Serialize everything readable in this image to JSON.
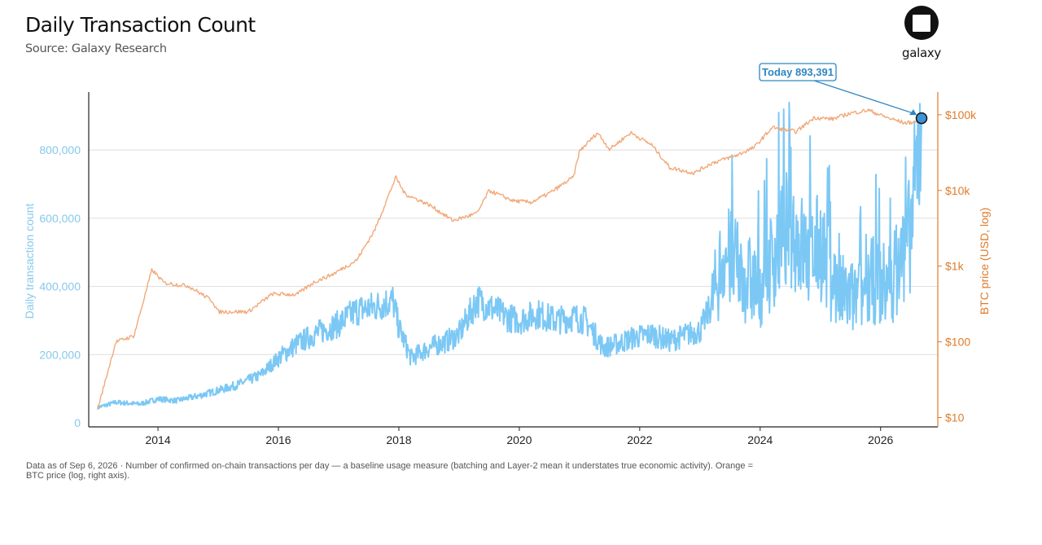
{
  "header": {
    "title": "Daily Transaction Count",
    "subtitle": "Source: Galaxy Research"
  },
  "logo": {
    "text": "galaxy",
    "icon": "galaxy-logo-icon"
  },
  "footnote": "Data as of Sep 6, 2026 · Number of confirmed on-chain transactions per day — a baseline usage measure (batching and Layer-2 mean it understates true economic activity). Orange = BTC price (log, right axis).",
  "chart_data": {
    "type": "line",
    "xlabel": "",
    "ylabel": "Daily transaction count",
    "y2label": "BTC price (USD, log)",
    "xlim": [
      2012.85,
      2026.95
    ],
    "ylim": [
      0,
      970000
    ],
    "y2lim_log10": [
      0.93,
      5.3
    ],
    "x_ticks": [
      2014,
      2016,
      2018,
      2020,
      2022,
      2024,
      2026
    ],
    "y_ticks": [
      0,
      200000,
      400000,
      600000,
      800000
    ],
    "y_tick_labels": [
      "0",
      "200,000",
      "400,000",
      "600,000",
      "800,000"
    ],
    "y2_ticks": [
      10,
      100,
      1000,
      10000,
      100000
    ],
    "y2_tick_labels": [
      "$10",
      "$100",
      "$1k",
      "$10k",
      "$100k"
    ],
    "grid": "horizontal",
    "colors": {
      "transactions": "#7cc8f5",
      "price": "#f2a97a",
      "left_axis": "#86c9ec",
      "right_axis": "#e07b2a",
      "annotation": "#2e86c1"
    },
    "series": [
      {
        "name": "Daily transaction count",
        "axis": "left",
        "x": [
          2013.0,
          2013.3,
          2013.7,
          2014.0,
          2014.3,
          2014.7,
          2015.0,
          2015.3,
          2015.7,
          2016.0,
          2016.3,
          2016.6,
          2017.0,
          2017.3,
          2017.6,
          2017.9,
          2018.0,
          2018.2,
          2018.5,
          2018.8,
          2019.0,
          2019.3,
          2019.5,
          2019.8,
          2020.0,
          2020.3,
          2020.6,
          2020.9,
          2021.1,
          2021.4,
          2021.6,
          2021.9,
          2022.2,
          2022.5,
          2022.8,
          2023.0,
          2023.2,
          2023.4,
          2023.7,
          2024.0,
          2024.3,
          2024.5,
          2024.8,
          2025.0,
          2025.3,
          2025.6,
          2025.9,
          2026.1,
          2026.3,
          2026.5,
          2026.68
        ],
        "y": [
          45000,
          60000,
          55000,
          70000,
          65000,
          80000,
          95000,
          110000,
          140000,
          190000,
          230000,
          260000,
          290000,
          330000,
          340000,
          360000,
          280000,
          190000,
          220000,
          240000,
          260000,
          360000,
          340000,
          310000,
          300000,
          320000,
          300000,
          310000,
          300000,
          220000,
          230000,
          250000,
          260000,
          240000,
          260000,
          270000,
          350000,
          500000,
          430000,
          400000,
          520000,
          580000,
          480000,
          520000,
          380000,
          360000,
          420000,
          400000,
          460000,
          560000,
          893391
        ]
      },
      {
        "name": "BTC price",
        "axis": "right",
        "x": [
          2013.0,
          2013.3,
          2013.6,
          2013.9,
          2014.1,
          2014.5,
          2014.9,
          2015.0,
          2015.5,
          2015.9,
          2016.3,
          2016.6,
          2016.9,
          2017.3,
          2017.6,
          2017.95,
          2018.1,
          2018.5,
          2018.9,
          2019.3,
          2019.5,
          2019.9,
          2020.2,
          2020.5,
          2020.9,
          2021.0,
          2021.3,
          2021.5,
          2021.85,
          2022.2,
          2022.5,
          2022.9,
          2023.2,
          2023.6,
          2023.9,
          2024.2,
          2024.6,
          2024.9,
          2025.2,
          2025.5,
          2025.8,
          2026.1,
          2026.4,
          2026.68
        ],
        "y": [
          13,
          100,
          120,
          900,
          600,
          550,
          350,
          250,
          250,
          430,
          420,
          620,
          780,
          1200,
          3000,
          15000,
          9000,
          6500,
          4000,
          5000,
          10000,
          7300,
          7000,
          9200,
          15000,
          33000,
          58000,
          35000,
          58000,
          40000,
          20000,
          17000,
          23000,
          29000,
          37000,
          68000,
          60000,
          92000,
          88000,
          105000,
          115000,
          92000,
          78000,
          82000
        ]
      }
    ],
    "annotation": {
      "text": "Today 893,391",
      "x": 2026.68,
      "y": 893391
    }
  }
}
